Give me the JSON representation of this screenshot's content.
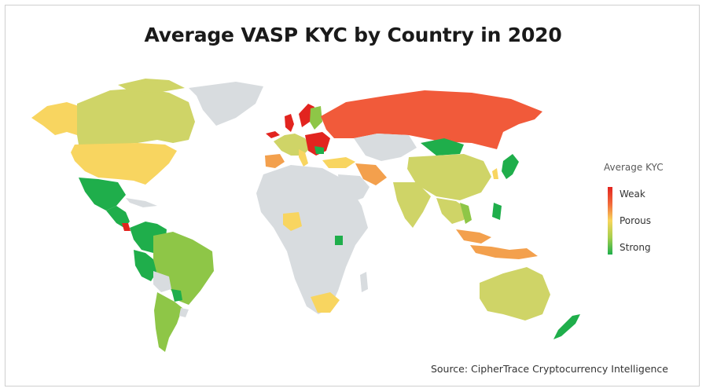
{
  "title": "Average VASP KYC by Country in 2020",
  "legend": {
    "title": "Average KYC",
    "labels": [
      "Weak",
      "Porous",
      "Strong"
    ],
    "gradient": [
      "#e2241f",
      "#f7d55c",
      "#1fae4b"
    ]
  },
  "source": "Source: CipherTrace Cryptocurrency Intelligence",
  "colors": {
    "no_data": "#d8dcdf",
    "weak": "#e2241f",
    "moderately_weak": "#f15a3a",
    "porous_low": "#f3a04d",
    "porous": "#f8d560",
    "porous_good": "#cfd467",
    "moderately_strong": "#8ec647",
    "strong": "#1fae4b"
  },
  "regions": [
    {
      "name": "Greenland",
      "level": "no_data"
    },
    {
      "name": "Alaska",
      "level": "porous"
    },
    {
      "name": "Canada",
      "level": "porous_good"
    },
    {
      "name": "United States",
      "level": "porous"
    },
    {
      "name": "Mexico",
      "level": "strong"
    },
    {
      "name": "Central America",
      "level": "strong"
    },
    {
      "name": "Colombia",
      "level": "strong"
    },
    {
      "name": "Venezuela",
      "level": "strong"
    },
    {
      "name": "Peru",
      "level": "strong"
    },
    {
      "name": "Brazil",
      "level": "moderately_strong"
    },
    {
      "name": "Bolivia",
      "level": "no_data"
    },
    {
      "name": "Argentina",
      "level": "moderately_strong"
    },
    {
      "name": "Chile",
      "level": "moderately_strong"
    },
    {
      "name": "Iceland",
      "level": "weak"
    },
    {
      "name": "United Kingdom",
      "level": "weak"
    },
    {
      "name": "Norway",
      "level": "weak"
    },
    {
      "name": "Sweden",
      "level": "moderately_strong"
    },
    {
      "name": "Western Europe",
      "level": "porous_good"
    },
    {
      "name": "Spain",
      "level": "porous_low"
    },
    {
      "name": "Eastern Europe",
      "level": "weak"
    },
    {
      "name": "Turkey",
      "level": "porous"
    },
    {
      "name": "Russia",
      "level": "moderately_weak"
    },
    {
      "name": "Kazakhstan",
      "level": "no_data"
    },
    {
      "name": "Mongolia",
      "level": "strong"
    },
    {
      "name": "China",
      "level": "porous_good"
    },
    {
      "name": "Japan",
      "level": "strong"
    },
    {
      "name": "India",
      "level": "porous_good"
    },
    {
      "name": "Iran",
      "level": "porous_low"
    },
    {
      "name": "Saudi Arabia",
      "level": "porous_low"
    },
    {
      "name": "Southeast Asia",
      "level": "porous_good"
    },
    {
      "name": "Vietnam",
      "level": "moderately_strong"
    },
    {
      "name": "Philippines",
      "level": "strong"
    },
    {
      "name": "Indonesia",
      "level": "porous_low"
    },
    {
      "name": "Australia",
      "level": "porous_good"
    },
    {
      "name": "New Zealand",
      "level": "strong"
    },
    {
      "name": "Africa",
      "level": "no_data"
    },
    {
      "name": "Nigeria",
      "level": "porous"
    },
    {
      "name": "Uganda",
      "level": "strong"
    },
    {
      "name": "South Africa",
      "level": "porous"
    },
    {
      "name": "Costa Rica",
      "level": "weak"
    }
  ]
}
